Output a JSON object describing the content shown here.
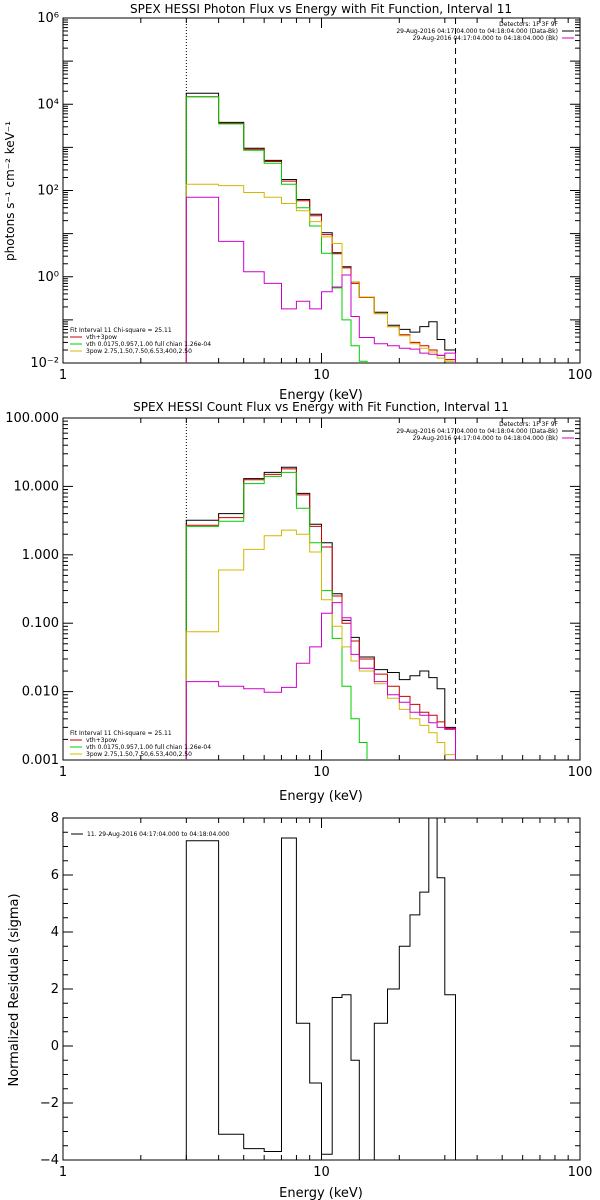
{
  "chart_data": [
    {
      "type": "line",
      "title": "SPEX HESSI Photon Flux vs Energy with Fit Function, Interval 11",
      "xlabel": "Energy (keV)",
      "ylabel": "photons s⁻¹ cm⁻² keV⁻¹",
      "xscale": "log",
      "yscale": "log",
      "xlim": [
        1,
        100
      ],
      "ylim": [
        0.01,
        1000000
      ],
      "x_ticks": [
        {
          "v": 1,
          "label": "1"
        },
        {
          "v": 10,
          "label": "10"
        },
        {
          "v": 100,
          "label": "100"
        }
      ],
      "y_ticks": [
        {
          "v": 0.01,
          "label": "10⁻²"
        },
        {
          "v": 1,
          "label": "10⁰"
        },
        {
          "v": 100,
          "label": "10²"
        },
        {
          "v": 10000,
          "label": "10⁴"
        },
        {
          "v": 1000000,
          "label": "10⁶"
        }
      ],
      "vlines": [
        {
          "x": 3,
          "style": "dotted"
        },
        {
          "x": 33,
          "style": "dashed"
        }
      ],
      "legend_top_right": [
        {
          "text": "Detectors: 1F 3F 9F",
          "color": ""
        },
        {
          "text": "29-Aug-2016 04:17:04.000 to 04:18:04.000 (Data-Bk)",
          "color": "#000000"
        },
        {
          "text": "29-Aug-2016 04:17:04.000 to 04:18:04.000 (Bk)",
          "color": "#cc00cc"
        }
      ],
      "legend_bottom_left": [
        {
          "text": "Fit Interval 11    Chi-square = 25.11",
          "color": ""
        },
        {
          "text": "vth+3pow",
          "color": "#cc0000"
        },
        {
          "text": "vth 0.0175,0.957,1.00  full chian 1.26e-04",
          "color": "#00cc00"
        },
        {
          "text": "3pow 2.75,1.50,7.50,6.53,400,2.50",
          "color": "#d4b800"
        }
      ],
      "series": [
        {
          "name": "Data-Bk",
          "color": "#000000",
          "edges": [
            3,
            4,
            5,
            6,
            7,
            8,
            9,
            10,
            11,
            12,
            13,
            14,
            16,
            18,
            20,
            22,
            24,
            26,
            28,
            30,
            33
          ],
          "values": [
            18000,
            3800,
            950,
            500,
            180,
            62,
            28,
            10.5,
            3.6,
            1.7,
            0.75,
            0.34,
            0.15,
            0.075,
            0.06,
            0.052,
            0.07,
            0.09,
            0.035,
            0.02
          ]
        },
        {
          "name": "vth+3pow",
          "color": "#cc0000",
          "edges": [
            3,
            4,
            5,
            6,
            7,
            8,
            9,
            10,
            11,
            12,
            13,
            14,
            16,
            18,
            20,
            22,
            24,
            26,
            28,
            30,
            33
          ],
          "values": [
            15000,
            3600,
            900,
            470,
            165,
            58,
            26,
            9.5,
            3.4,
            1.6,
            0.7,
            0.33,
            0.14,
            0.07,
            0.045,
            0.03,
            0.025,
            0.02,
            0.015,
            0.012
          ]
        },
        {
          "name": "vth",
          "color": "#00cc00",
          "edges": [
            3,
            4,
            5,
            6,
            7,
            8,
            9,
            10,
            11,
            12,
            13,
            14,
            15
          ],
          "values": [
            15000,
            3500,
            860,
            430,
            140,
            40,
            15,
            3.5,
            0.55,
            0.1,
            0.025,
            0.011,
            0.005
          ]
        },
        {
          "name": "3pow",
          "color": "#d4b800",
          "edges": [
            3,
            4,
            5,
            6,
            7,
            8,
            9,
            10,
            11,
            12,
            13,
            14,
            16,
            18,
            20,
            22,
            24,
            26,
            28,
            30,
            33
          ],
          "values": [
            140,
            130,
            90,
            70,
            50,
            34,
            19,
            8.4,
            5.9,
            1.1,
            0.75,
            0.34,
            0.14,
            0.07,
            0.043,
            0.028,
            0.022,
            0.018,
            0.013,
            0.011
          ]
        },
        {
          "name": "Bk",
          "color": "#cc00cc",
          "edges": [
            3,
            4,
            5,
            6,
            7,
            8,
            9,
            10,
            11,
            12,
            13,
            14,
            16,
            18,
            20,
            22,
            24,
            26,
            28,
            30,
            33
          ],
          "values": [
            70,
            6.6,
            1.3,
            0.7,
            0.18,
            0.27,
            0.18,
            0.45,
            0.58,
            1.1,
            0.12,
            0.039,
            0.028,
            0.025,
            0.022,
            0.021,
            0.017,
            0.016,
            0.015,
            0.017
          ]
        }
      ]
    },
    {
      "type": "line",
      "title": "SPEX HESSI Count Flux vs Energy with Fit Function, Interval 11",
      "xlabel": "Energy (keV)",
      "ylabel": "",
      "xscale": "log",
      "yscale": "log",
      "xlim": [
        1,
        100
      ],
      "ylim": [
        0.001,
        100
      ],
      "x_ticks": [
        {
          "v": 1,
          "label": "1"
        },
        {
          "v": 10,
          "label": "10"
        },
        {
          "v": 100,
          "label": "100"
        }
      ],
      "y_ticks": [
        {
          "v": 0.001,
          "label": "0.001"
        },
        {
          "v": 0.01,
          "label": "0.010"
        },
        {
          "v": 0.1,
          "label": "0.100"
        },
        {
          "v": 1,
          "label": "1.000"
        },
        {
          "v": 10,
          "label": "10.000"
        },
        {
          "v": 100,
          "label": "100.000"
        }
      ],
      "vlines": [
        {
          "x": 3,
          "style": "dotted"
        },
        {
          "x": 33,
          "style": "dashed"
        }
      ],
      "legend_top_right": [
        {
          "text": "Detectors: 1F 3F 9F",
          "color": ""
        },
        {
          "text": "29-Aug-2016 04:17:04.000 to 04:18:04.000 (Data-Bk)",
          "color": "#000000"
        },
        {
          "text": "29-Aug-2016 04:17:04.000 to 04:18:04.000 (Bk)",
          "color": "#cc00cc"
        }
      ],
      "legend_bottom_left": [
        {
          "text": "Fit Interval 11    Chi-square = 25.11",
          "color": ""
        },
        {
          "text": "vth+3pow",
          "color": "#cc0000"
        },
        {
          "text": "vth 0.0175,0.957,1.00  full chian 1.26e-04",
          "color": "#00cc00"
        },
        {
          "text": "3pow 2.75,1.50,7.50,6.53,400,2.50",
          "color": "#d4b800"
        }
      ],
      "series": [
        {
          "name": "Data-Bk",
          "color": "#000000",
          "edges": [
            3,
            4,
            5,
            6,
            7,
            8,
            9,
            10,
            11,
            12,
            13,
            14,
            16,
            18,
            20,
            22,
            24,
            26,
            28,
            30,
            33
          ],
          "values": [
            3.2,
            4.0,
            13,
            16,
            19,
            7.9,
            2.8,
            1.5,
            0.27,
            0.11,
            0.062,
            0.032,
            0.021,
            0.019,
            0.015,
            0.017,
            0.02,
            0.016,
            0.011,
            0.003
          ]
        },
        {
          "name": "vth+3pow",
          "color": "#cc0000",
          "edges": [
            3,
            4,
            5,
            6,
            7,
            8,
            9,
            10,
            11,
            12,
            13,
            14,
            16,
            18,
            20,
            22,
            24,
            26,
            28,
            30,
            33
          ],
          "values": [
            2.7,
            3.5,
            12.5,
            15,
            18,
            7.5,
            2.6,
            1.3,
            0.25,
            0.1,
            0.055,
            0.03,
            0.018,
            0.012,
            0.0085,
            0.0065,
            0.005,
            0.0045,
            0.0036,
            0.0029
          ]
        },
        {
          "name": "vth",
          "color": "#00cc00",
          "edges": [
            3,
            4,
            5,
            6,
            7,
            8,
            9,
            10,
            11,
            12,
            13,
            14,
            15
          ],
          "values": [
            2.6,
            3.1,
            11,
            14,
            16,
            4.8,
            1.5,
            0.3,
            0.06,
            0.012,
            0.004,
            0.0018,
            0.0005
          ]
        },
        {
          "name": "3pow",
          "color": "#d4b800",
          "edges": [
            3,
            4,
            5,
            6,
            7,
            8,
            9,
            10,
            11,
            12,
            13,
            14,
            16,
            18,
            20,
            22,
            24,
            26,
            28,
            30,
            33
          ],
          "values": [
            0.075,
            0.6,
            1.2,
            1.9,
            2.3,
            2.0,
            1.1,
            0.22,
            0.09,
            0.045,
            0.028,
            0.02,
            0.013,
            0.008,
            0.0055,
            0.004,
            0.0032,
            0.0025,
            0.0018,
            0.0012
          ]
        },
        {
          "name": "Bk",
          "color": "#cc00cc",
          "edges": [
            3,
            4,
            5,
            6,
            7,
            8,
            9,
            10,
            11,
            12,
            13,
            14,
            16,
            18,
            20,
            22,
            24,
            26,
            28,
            30,
            33
          ],
          "values": [
            0.014,
            0.012,
            0.011,
            0.0098,
            0.0115,
            0.026,
            0.045,
            0.14,
            0.2,
            0.12,
            0.035,
            0.022,
            0.014,
            0.009,
            0.007,
            0.005,
            0.0045,
            0.0035,
            0.003,
            0.0028
          ]
        }
      ]
    },
    {
      "type": "line",
      "title": "",
      "xlabel": "Energy (keV)",
      "ylabel": "Normalized Residuals (sigma)",
      "xscale": "log",
      "yscale": "linear",
      "xlim": [
        1,
        100
      ],
      "ylim": [
        -4,
        8
      ],
      "x_ticks": [
        {
          "v": 1,
          "label": "1"
        },
        {
          "v": 10,
          "label": "10"
        },
        {
          "v": 100,
          "label": "100"
        }
      ],
      "y_ticks": [
        {
          "v": -4,
          "label": "−4"
        },
        {
          "v": -2,
          "label": "−2"
        },
        {
          "v": 0,
          "label": "0"
        },
        {
          "v": 2,
          "label": "2"
        },
        {
          "v": 4,
          "label": "4"
        },
        {
          "v": 6,
          "label": "6"
        },
        {
          "v": 8,
          "label": "8"
        }
      ],
      "legend_top_left": [
        {
          "text": "11. 29-Aug-2016 04:17:04.000 to 04:18:04.000",
          "color": "#000000"
        }
      ],
      "series": [
        {
          "name": "11. 29-Aug-2016 04:17:04.000 to 04:18:04.000",
          "color": "#000000",
          "edges": [
            3,
            4,
            5,
            6,
            7,
            8,
            9,
            10,
            11,
            12,
            13,
            14,
            16,
            18,
            20,
            22,
            24,
            26,
            28,
            30,
            33
          ],
          "values": [
            7.2,
            -3.1,
            -3.6,
            -3.7,
            7.3,
            0.8,
            -1.3,
            -3.8,
            1.7,
            1.8,
            -0.5,
            -4.0,
            0.8,
            2.0,
            3.5,
            4.6,
            5.4,
            8.0,
            5.9,
            1.8
          ]
        }
      ]
    }
  ]
}
